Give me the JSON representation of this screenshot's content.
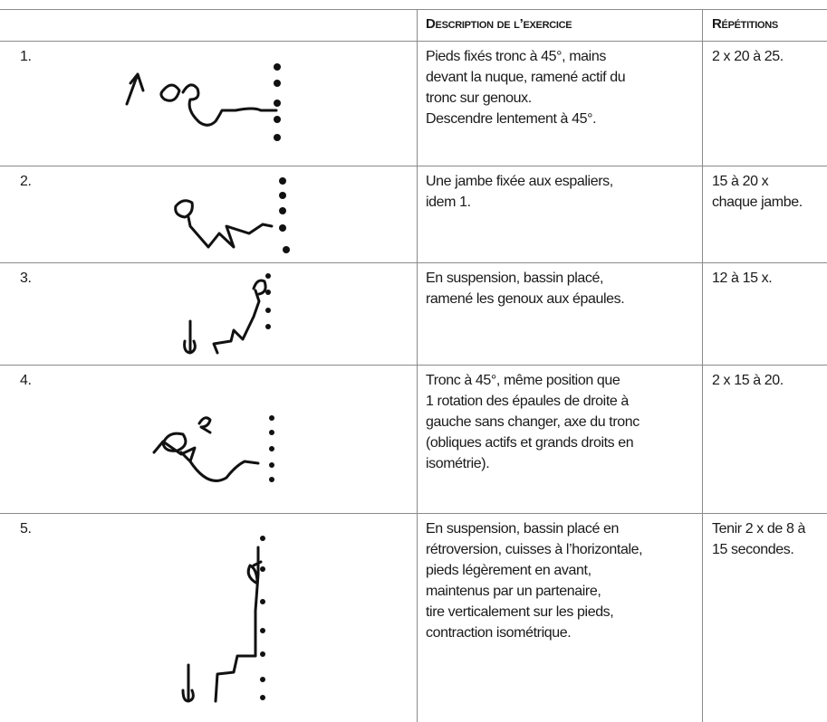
{
  "table": {
    "header": [
      "Description de l’exercice",
      "Répétitions"
    ],
    "rows": [
      {
        "number": "1.",
        "description": [
          "Pieds fixés tronc à 45°, mains",
          "devant la nuque, ramené actif du",
          "tronc sur genoux.",
          "Descendre lentement à 45°."
        ],
        "repetitions": [
          "2 x 20 à 25."
        ]
      },
      {
        "number": "2.",
        "description": [
          "Une jambe fixée aux espaliers,",
          "idem 1."
        ],
        "repetitions": [
          "15 à 20 x",
          "chaque jambe."
        ]
      },
      {
        "number": "3.",
        "description": [
          "En suspension, bassin placé,",
          "ramené les genoux aux épaules."
        ],
        "repetitions": [
          "12 à 15 x."
        ]
      },
      {
        "number": "4.",
        "description": [
          "Tronc à 45°, même position que",
          "1 rotation des épaules de droite à",
          "gauche sans changer, axe du tronc",
          "(obliques actifs et grands droits en",
          "isométrie)."
        ],
        "repetitions": [
          "2 x 15 à 20."
        ]
      },
      {
        "number": "5.",
        "description": [
          "En suspension, bassin placé en",
          "rétroversion, cuisses à l’horizontale,",
          "pieds légèrement en avant,",
          "maintenus par un partenaire,",
          "tire verticalement sur les pieds,",
          "contraction isométrique."
        ],
        "repetitions": [
          "Tenir 2 x de 8 à",
          "15 secondes."
        ]
      }
    ]
  }
}
